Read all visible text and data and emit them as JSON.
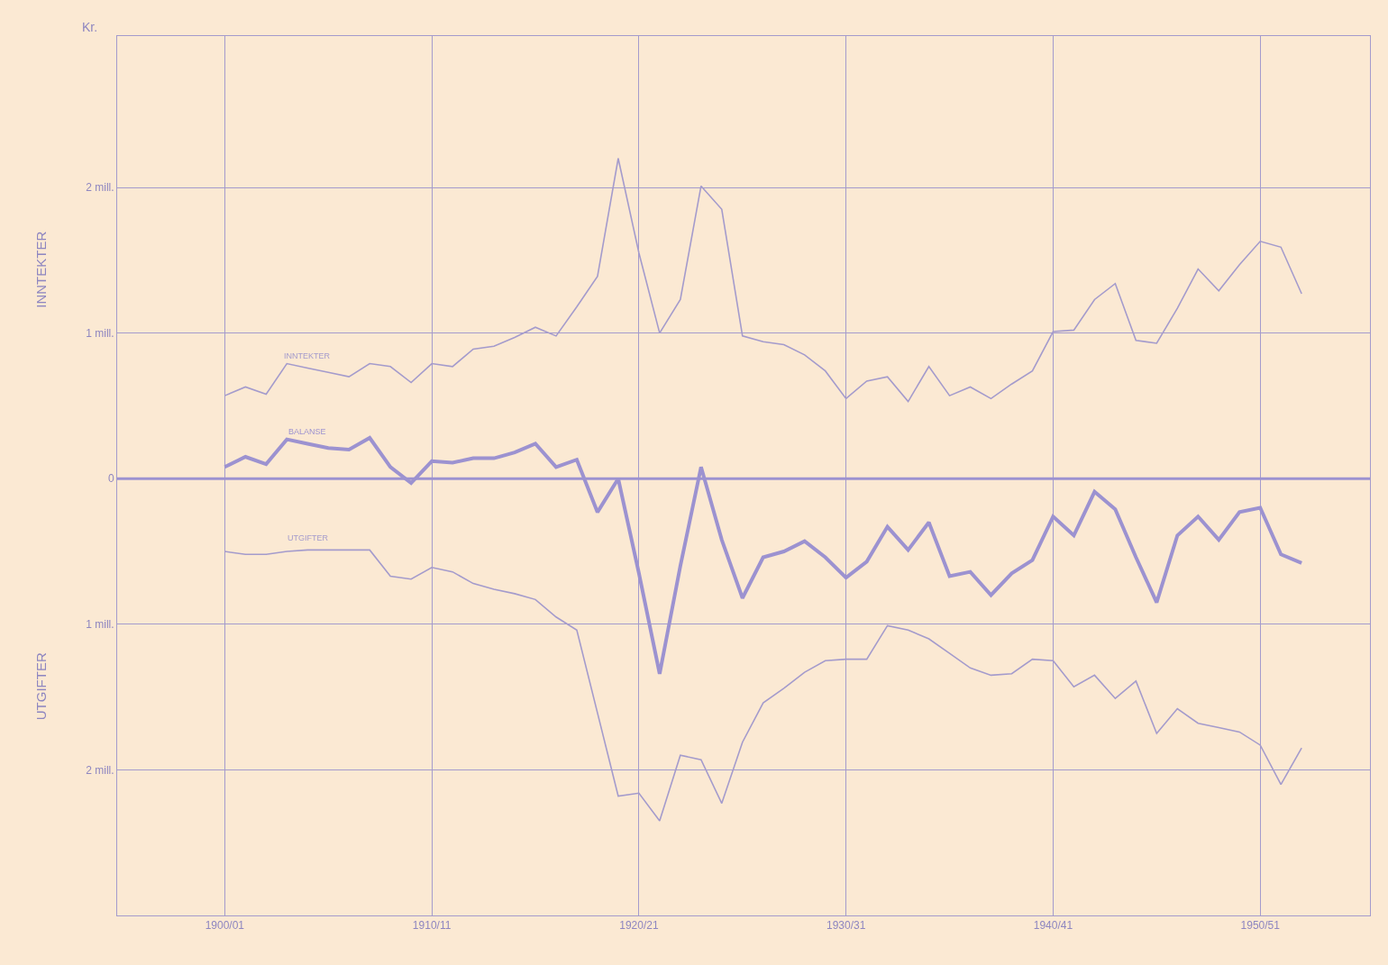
{
  "chart_data": {
    "type": "line",
    "ylabel": "Kr.",
    "annotations": [
      "INNTEKTER",
      "UTGIFTER"
    ],
    "categories": [
      "1900/01",
      null,
      null,
      null,
      null,
      null,
      null,
      null,
      null,
      null,
      "1910/11",
      null,
      null,
      null,
      null,
      null,
      null,
      null,
      null,
      null,
      "1920/21",
      null,
      null,
      null,
      null,
      null,
      null,
      null,
      null,
      null,
      "1930/31",
      null,
      null,
      null,
      null,
      null,
      null,
      null,
      null,
      null,
      "1940/41",
      null,
      null,
      null,
      null,
      null,
      null,
      null,
      null,
      null,
      "1950/51",
      null,
      null
    ],
    "series": [
      {
        "name": "INNTEKTER",
        "color": "#a49bcc",
        "values": [
          0.57,
          0.63,
          0.58,
          0.79,
          0.76,
          0.73,
          0.7,
          0.79,
          0.77,
          0.66,
          0.79,
          0.77,
          0.89,
          0.91,
          0.97,
          1.04,
          0.98,
          1.18,
          1.39,
          2.2,
          1.55,
          1.0,
          1.23,
          2.01,
          1.85,
          0.98,
          0.94,
          0.92,
          0.85,
          0.74,
          0.55,
          0.67,
          0.7,
          0.53,
          0.77,
          0.57,
          0.63,
          0.55,
          0.65,
          0.74,
          1.01,
          1.02,
          1.23,
          1.34,
          0.95,
          0.93,
          1.17,
          1.44,
          1.29,
          1.47,
          1.63,
          1.59,
          1.27
        ]
      },
      {
        "name": "BALANSE",
        "color": "#9c92d0",
        "values": [
          0.08,
          0.15,
          0.1,
          0.27,
          0.24,
          0.21,
          0.2,
          0.28,
          0.08,
          -0.03,
          0.12,
          0.11,
          0.14,
          0.14,
          0.18,
          0.24,
          0.08,
          0.13,
          -0.23,
          0.0,
          -0.65,
          -1.34,
          -0.6,
          0.08,
          -0.42,
          -0.82,
          -0.54,
          -0.5,
          -0.43,
          -0.54,
          -0.68,
          -0.57,
          -0.33,
          -0.49,
          -0.3,
          -0.67,
          -0.64,
          -0.8,
          -0.65,
          -0.56,
          -0.26,
          -0.39,
          -0.09,
          -0.21,
          -0.54,
          -0.85,
          -0.39,
          -0.26,
          -0.42,
          -0.23,
          -0.2,
          -0.52,
          -0.58
        ]
      },
      {
        "name": "UTGIFTER",
        "color": "#a49bcc",
        "values": [
          -0.5,
          -0.52,
          -0.52,
          -0.5,
          -0.49,
          -0.49,
          -0.49,
          -0.49,
          -0.67,
          -0.69,
          -0.61,
          -0.64,
          -0.72,
          -0.76,
          -0.79,
          -0.83,
          -0.95,
          -1.04,
          -1.61,
          -2.18,
          -2.16,
          -2.35,
          -1.9,
          -1.93,
          -2.23,
          -1.81,
          -1.54,
          -1.44,
          -1.33,
          -1.25,
          -1.24,
          -1.24,
          -1.01,
          -1.04,
          -1.1,
          -1.2,
          -1.3,
          -1.35,
          -1.34,
          -1.24,
          -1.25,
          -1.43,
          -1.35,
          -1.51,
          -1.39,
          -1.75,
          -1.58,
          -1.68,
          -1.71,
          -1.74,
          -1.83,
          -2.1,
          -1.85
        ]
      }
    ],
    "ylim": [
      -3.0,
      3.04
    ],
    "yticks": [
      {
        "value": 2,
        "label": "2 mill."
      },
      {
        "value": 1,
        "label": "1 mill."
      },
      0,
      {
        "value": -1,
        "label": "1 mill."
      },
      {
        "value": -2,
        "label": "2 mill."
      }
    ],
    "ref_lines": [
      {
        "axis": "y",
        "value": 0,
        "color": "#9c92d0"
      }
    ],
    "grid": true,
    "legend": false,
    "marker": "none",
    "line_style": "solid"
  }
}
